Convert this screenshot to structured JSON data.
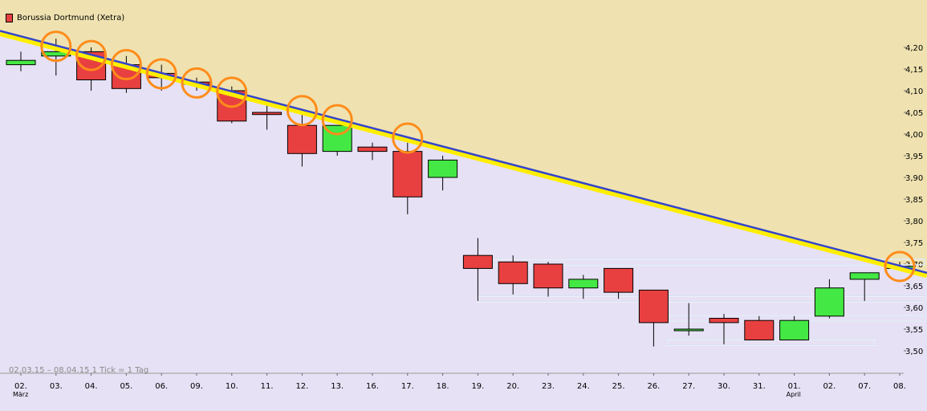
{
  "chart_data": {
    "type": "candlestick",
    "title": "Borussia Dortmund (Xetra)",
    "footer": "02.03.15 – 08.04.15   1 Tick = 1 Tag",
    "x_labels": [
      "02.",
      "03.",
      "04.",
      "05.",
      "06.",
      "09.",
      "10.",
      "11.",
      "12.",
      "13.",
      "16.",
      "17.",
      "18.",
      "19.",
      "20.",
      "23.",
      "24.",
      "25.",
      "26.",
      "27.",
      "30.",
      "31.",
      "01.",
      "02.",
      "07.",
      "08."
    ],
    "month_labels": [
      {
        "index": 0,
        "text": "März"
      },
      {
        "index": 22,
        "text": "April"
      }
    ],
    "y_ticks": [
      "4,20",
      "4,15",
      "4,10",
      "4,05",
      "4,00",
      "3,95",
      "3,90",
      "3,85",
      "3,80",
      "3,75",
      "3,70",
      "3,65",
      "3,60",
      "3,55",
      "3,50"
    ],
    "ylim": [
      3.46,
      4.25
    ],
    "colors": {
      "up": "#44e844",
      "down": "#e84040",
      "trendline": "#3344cc",
      "trendline_glow": "#ffee00",
      "circle": "#ff8c1a",
      "support": "#ffffff",
      "upper_area": "#efe2b0",
      "lower_area": "#e6e1f4"
    },
    "candles": [
      {
        "open": 4.16,
        "high": 4.19,
        "low": 4.145,
        "close": 4.17
      },
      {
        "open": 4.18,
        "high": 4.22,
        "low": 4.135,
        "close": 4.19
      },
      {
        "open": 4.19,
        "high": 4.2,
        "low": 4.1,
        "close": 4.125
      },
      {
        "open": 4.16,
        "high": 4.18,
        "low": 4.095,
        "close": 4.105
      },
      {
        "open": 4.14,
        "high": 4.16,
        "low": 4.1,
        "close": 4.13
      },
      {
        "open": 4.12,
        "high": 4.13,
        "low": 4.1,
        "close": 4.115
      },
      {
        "open": 4.1,
        "high": 4.11,
        "low": 4.025,
        "close": 4.03
      },
      {
        "open": 4.05,
        "high": 4.07,
        "low": 4.01,
        "close": 4.045
      },
      {
        "open": 4.02,
        "high": 4.05,
        "low": 3.925,
        "close": 3.955
      },
      {
        "open": 3.96,
        "high": 4.02,
        "low": 3.95,
        "close": 4.02
      },
      {
        "open": 3.97,
        "high": 3.98,
        "low": 3.94,
        "close": 3.96
      },
      {
        "open": 3.96,
        "high": 3.98,
        "low": 3.815,
        "close": 3.855
      },
      {
        "open": 3.9,
        "high": 3.95,
        "low": 3.87,
        "close": 3.94
      },
      {
        "open": 3.72,
        "high": 3.76,
        "low": 3.615,
        "close": 3.69
      },
      {
        "open": 3.705,
        "high": 3.72,
        "low": 3.63,
        "close": 3.655
      },
      {
        "open": 3.7,
        "high": 3.705,
        "low": 3.625,
        "close": 3.645
      },
      {
        "open": 3.645,
        "high": 3.675,
        "low": 3.62,
        "close": 3.665
      },
      {
        "open": 3.69,
        "high": 3.69,
        "low": 3.62,
        "close": 3.635
      },
      {
        "open": 3.64,
        "high": 3.64,
        "low": 3.51,
        "close": 3.565
      },
      {
        "open": 3.55,
        "high": 3.61,
        "low": 3.535,
        "close": 3.55
      },
      {
        "open": 3.575,
        "high": 3.585,
        "low": 3.515,
        "close": 3.565
      },
      {
        "open": 3.57,
        "high": 3.58,
        "low": 3.525,
        "close": 3.525
      },
      {
        "open": 3.525,
        "high": 3.58,
        "low": 3.525,
        "close": 3.57
      },
      {
        "open": 3.58,
        "high": 3.665,
        "low": 3.575,
        "close": 3.645
      },
      {
        "open": 3.665,
        "high": 3.68,
        "low": 3.615,
        "close": 3.68
      },
      {
        "open": 3.69,
        "high": 3.705,
        "low": 3.685,
        "close": 3.695
      }
    ],
    "trendline": {
      "from": {
        "index": -0.45,
        "value": 4.235
      },
      "to": {
        "index": 26.1,
        "value": 3.673
      }
    },
    "touch_circles": [
      1,
      2,
      3,
      4,
      5,
      6,
      8,
      9,
      11,
      25
    ],
    "support_levels": [
      {
        "value": 3.705,
        "from_index": 13.3,
        "to_index": 25.7
      },
      {
        "value": 3.62,
        "from_index": 13.0,
        "to_index": 25.7
      },
      {
        "value": 3.575,
        "from_index": 18.4,
        "to_index": 25.7
      },
      {
        "value": 3.52,
        "from_index": 18.4,
        "to_index": 24.3
      }
    ]
  }
}
